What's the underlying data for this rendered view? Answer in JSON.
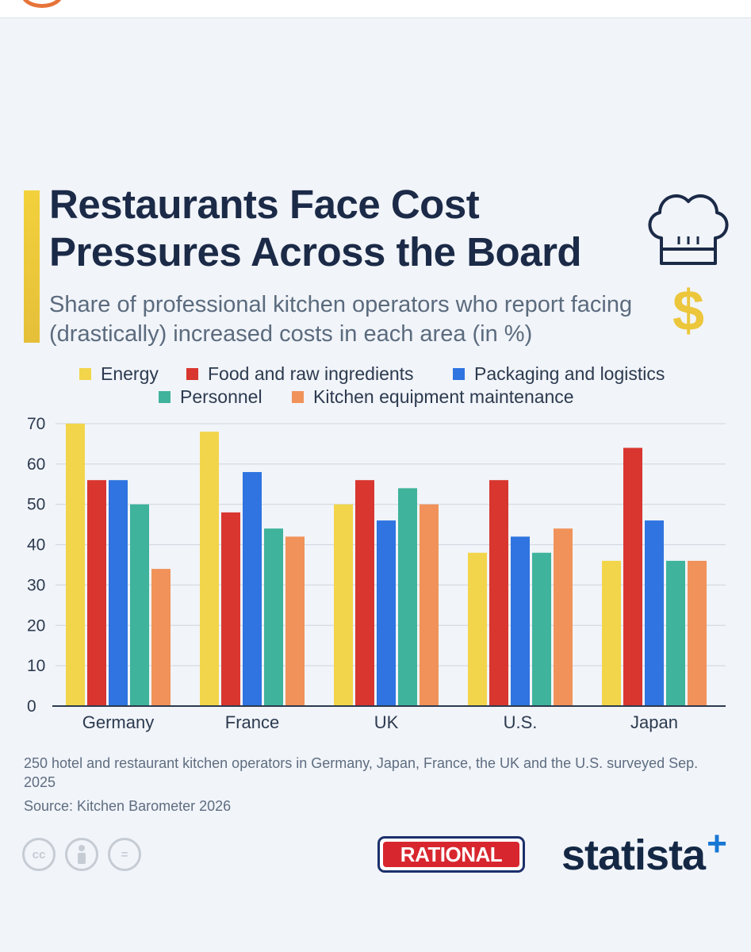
{
  "header": {
    "title": "Restaurants Face Cost Pressures Across the Board",
    "subtitle": "Share of professional kitchen operators who report facing (drastically) increased costs in each area (in %)"
  },
  "legend": [
    {
      "label": "Energy",
      "color": "#f2d54a"
    },
    {
      "label": "Food and raw ingredients",
      "color": "#d8362f"
    },
    {
      "label": "Packaging and logistics",
      "color": "#2f74e0"
    },
    {
      "label": "Personnel",
      "color": "#3fb39b"
    },
    {
      "label": "Kitchen equipment maintenance",
      "color": "#f0925a"
    }
  ],
  "chart_data": {
    "type": "bar",
    "categories": [
      "Germany",
      "France",
      "UK",
      "U.S.",
      "Japan"
    ],
    "series": [
      {
        "name": "Energy",
        "color": "#f2d54a",
        "values": [
          70,
          68,
          50,
          38,
          36
        ]
      },
      {
        "name": "Food and raw ingredients",
        "color": "#d8362f",
        "values": [
          56,
          48,
          56,
          56,
          64
        ]
      },
      {
        "name": "Packaging and logistics",
        "color": "#2f74e0",
        "values": [
          56,
          58,
          46,
          42,
          46
        ]
      },
      {
        "name": "Personnel",
        "color": "#3fb39b",
        "values": [
          50,
          44,
          54,
          38,
          36
        ]
      },
      {
        "name": "Kitchen equipment maintenance",
        "color": "#f0925a",
        "values": [
          34,
          42,
          50,
          44,
          36
        ]
      }
    ],
    "ylim": [
      0,
      70
    ],
    "yticks": [
      "0",
      "10",
      "20",
      "30",
      "40",
      "50",
      "60",
      "70"
    ],
    "grid": true,
    "legend_position": "top"
  },
  "notes": {
    "description": "250 hotel and restaurant kitchen operators in Germany, Japan, France, the UK and the U.S. surveyed Sep. 2025",
    "source": "Source: Kitchen Barometer 2026"
  },
  "footer": {
    "cc_icons": [
      {
        "icon": "cc-icon",
        "text": "cc"
      },
      {
        "icon": "by-icon",
        "text": ""
      },
      {
        "icon": "nd-icon",
        "text": "="
      }
    ],
    "sponsor_logo": "RATIONAL",
    "brand_logo": "statista",
    "brand_plus": "+"
  }
}
